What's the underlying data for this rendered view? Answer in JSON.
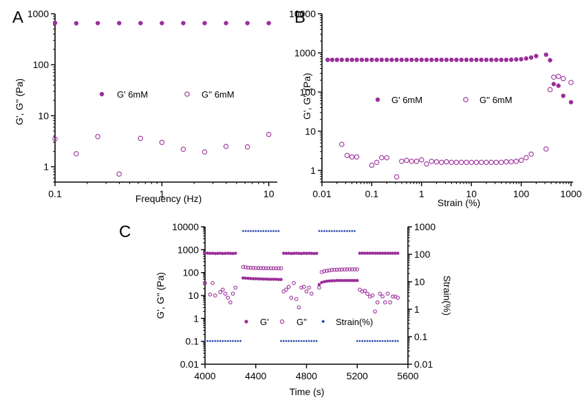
{
  "colors": {
    "purple": "#9b2f9b",
    "blue": "#1f3fa8"
  },
  "chart_data": [
    {
      "type": "scatter",
      "panel_label": "A",
      "xlabel": "Frequency (Hz)",
      "ylabel": "G', G'' (Pa)",
      "x_scale": "log",
      "y_scale": "log",
      "xlim": [
        0.1,
        12
      ],
      "ylim": [
        0.5,
        1000
      ],
      "x_ticks": [
        "0.1",
        "1",
        "10"
      ],
      "y_ticks": [
        "1",
        "10",
        "100",
        "1000"
      ],
      "legend": "center",
      "series": [
        {
          "name": "G' 6mM",
          "marker": "filled",
          "x": [
            0.1,
            0.158,
            0.251,
            0.398,
            0.631,
            1.0,
            1.585,
            2.512,
            3.981,
            6.31,
            10.0
          ],
          "y": [
            660,
            650,
            655,
            655,
            655,
            655,
            655,
            655,
            655,
            655,
            655
          ]
        },
        {
          "name": "G'' 6mM",
          "marker": "open",
          "x": [
            0.1,
            0.158,
            0.251,
            0.398,
            0.631,
            1.0,
            1.585,
            2.512,
            3.981,
            6.31,
            10.0
          ],
          "y": [
            3.5,
            1.8,
            3.9,
            0.72,
            3.6,
            3.0,
            2.2,
            1.95,
            2.5,
            2.45,
            4.3
          ]
        }
      ]
    },
    {
      "type": "scatter",
      "panel_label": "B",
      "xlabel": "Strain (%)",
      "ylabel": "G', G'' (Pa)",
      "x_scale": "log",
      "y_scale": "log",
      "xlim": [
        0.01,
        1100
      ],
      "ylim": [
        0.5,
        10000
      ],
      "x_ticks": [
        "0.01",
        "0.1",
        "1",
        "10",
        "100",
        "1000"
      ],
      "y_ticks": [
        "1",
        "10",
        "100",
        "1000",
        "10000"
      ],
      "legend": "center",
      "series": [
        {
          "name": "G' 6mM",
          "marker": "filled",
          "x": [
            0.013,
            0.016,
            0.02,
            0.025,
            0.032,
            0.04,
            0.05,
            0.063,
            0.079,
            0.1,
            0.126,
            0.158,
            0.2,
            0.251,
            0.316,
            0.398,
            0.501,
            0.631,
            0.794,
            1.0,
            1.259,
            1.585,
            1.995,
            2.512,
            3.162,
            3.981,
            5.012,
            6.31,
            7.943,
            10.0,
            12.59,
            15.85,
            19.95,
            25.12,
            31.62,
            39.81,
            50.12,
            63.1,
            79.43,
            100,
            125.9,
            158.5,
            199.5,
            316,
            380,
            450,
            560,
            700,
            1000
          ],
          "y": [
            665,
            665,
            665,
            665,
            665,
            665,
            665,
            665,
            665,
            665,
            665,
            665,
            665,
            665,
            665,
            665,
            665,
            665,
            665,
            665,
            665,
            665,
            665,
            665,
            665,
            665,
            665,
            665,
            665,
            665,
            665,
            665,
            665,
            665,
            665,
            665,
            665,
            670,
            680,
            690,
            720,
            760,
            830,
            900,
            650,
            160,
            145,
            80,
            55
          ]
        },
        {
          "name": "G'' 6mM",
          "marker": "open",
          "x": [
            0.025,
            0.032,
            0.04,
            0.05,
            0.1,
            0.126,
            0.158,
            0.2,
            0.316,
            0.398,
            0.501,
            0.631,
            0.794,
            1.0,
            1.259,
            1.585,
            1.995,
            2.512,
            3.162,
            3.981,
            5.012,
            6.31,
            7.943,
            10.0,
            12.59,
            15.85,
            19.95,
            25.12,
            31.62,
            39.81,
            50.12,
            63.1,
            79.43,
            100,
            125.9,
            158.5,
            316,
            380,
            450,
            560,
            700,
            1000
          ],
          "y": [
            4.6,
            2.4,
            2.2,
            2.2,
            1.35,
            1.6,
            2.1,
            2.1,
            0.68,
            1.7,
            1.8,
            1.7,
            1.7,
            1.85,
            1.45,
            1.7,
            1.65,
            1.6,
            1.65,
            1.6,
            1.6,
            1.6,
            1.6,
            1.6,
            1.6,
            1.6,
            1.6,
            1.6,
            1.6,
            1.6,
            1.65,
            1.65,
            1.7,
            1.8,
            2.1,
            2.6,
            3.5,
            115,
            240,
            250,
            220,
            175
          ]
        }
      ]
    },
    {
      "type": "scatter",
      "panel_label": "C",
      "xlabel": "Time (s)",
      "ylabel": "G', G'' (Pa)",
      "ylabel_right": "Strain(%)",
      "y_scale": "log",
      "y2_scale": "log",
      "xlim": [
        4000,
        5600
      ],
      "ylim": [
        0.01,
        10000
      ],
      "y2lim": [
        0.01,
        1000
      ],
      "x_ticks": [
        "4000",
        "4400",
        "4800",
        "5200",
        "5600"
      ],
      "y_ticks": [
        "0.01",
        "0.1",
        "1",
        "10",
        "100",
        "1000",
        "10000"
      ],
      "y2_ticks": [
        "0.01",
        "0.1",
        "1",
        "10",
        "100",
        "1000"
      ],
      "legend": "lower-center",
      "series": [
        {
          "name": "G'",
          "marker": "filled",
          "x": [
            4000,
            4020,
            4040,
            4060,
            4080,
            4100,
            4120,
            4140,
            4160,
            4180,
            4200,
            4220,
            4240,
            4300,
            4320,
            4340,
            4360,
            4380,
            4400,
            4420,
            4440,
            4460,
            4480,
            4500,
            4520,
            4540,
            4560,
            4580,
            4600,
            4620,
            4640,
            4660,
            4680,
            4700,
            4720,
            4740,
            4760,
            4780,
            4800,
            4820,
            4840,
            4860,
            4880,
            4900,
            4920,
            4940,
            4960,
            4980,
            5000,
            5020,
            5040,
            5060,
            5080,
            5100,
            5120,
            5140,
            5160,
            5180,
            5200,
            5220,
            5240,
            5260,
            5280,
            5300,
            5320,
            5340,
            5360,
            5380,
            5400,
            5420,
            5440,
            5460,
            5480,
            5500,
            5520
          ],
          "y": [
            700,
            710,
            690,
            700,
            680,
            690,
            700,
            680,
            690,
            700,
            690,
            680,
            700,
            58,
            57,
            56,
            55,
            54,
            54,
            53,
            53,
            52,
            52,
            51,
            51,
            51,
            51,
            50,
            50,
            700,
            690,
            700,
            680,
            690,
            700,
            690,
            680,
            700,
            690,
            700,
            690,
            680,
            690,
            30,
            37,
            40,
            42,
            43,
            44,
            44,
            45,
            45,
            45,
            45,
            45,
            45,
            45,
            45,
            45,
            700,
            705,
            700,
            700,
            700,
            705,
            700,
            700,
            700,
            700,
            700,
            700,
            700,
            700,
            700,
            700
          ]
        },
        {
          "name": "G''",
          "marker": "open",
          "x": [
            4000,
            4040,
            4060,
            4080,
            4120,
            4140,
            4160,
            4180,
            4200,
            4220,
            4240,
            4300,
            4320,
            4340,
            4360,
            4380,
            4400,
            4420,
            4440,
            4460,
            4480,
            4500,
            4520,
            4540,
            4560,
            4580,
            4600,
            4620,
            4640,
            4660,
            4680,
            4700,
            4720,
            4740,
            4760,
            4780,
            4800,
            4820,
            4840,
            4900,
            4920,
            4940,
            4960,
            4980,
            5000,
            5020,
            5040,
            5060,
            5080,
            5100,
            5120,
            5140,
            5160,
            5180,
            5200,
            5220,
            5240,
            5260,
            5280,
            5300,
            5320,
            5340,
            5360,
            5380,
            5400,
            5420,
            5440,
            5460,
            5480,
            5500,
            5520
          ],
          "y": [
            35,
            11,
            35,
            10,
            14,
            18,
            12,
            8,
            5,
            12,
            22,
            175,
            170,
            165,
            162,
            160,
            158,
            157,
            156,
            155,
            155,
            154,
            154,
            154,
            153,
            153,
            153,
            15,
            18,
            24,
            8,
            35,
            7,
            3,
            22,
            24,
            15,
            22,
            12,
            22,
            105,
            115,
            120,
            125,
            130,
            132,
            134,
            135,
            136,
            137,
            138,
            138,
            138,
            138,
            138,
            18,
            15,
            16,
            12,
            9,
            10,
            2,
            5,
            12,
            9,
            5,
            12,
            5,
            9,
            9,
            8
          ]
        },
        {
          "name": "Strain(%)",
          "marker": "diamond",
          "axis": "right",
          "x": [
            4000,
            4020,
            4040,
            4060,
            4080,
            4100,
            4120,
            4140,
            4160,
            4180,
            4200,
            4220,
            4240,
            4260,
            4280,
            4300,
            4320,
            4340,
            4360,
            4380,
            4400,
            4420,
            4440,
            4460,
            4480,
            4500,
            4520,
            4540,
            4560,
            4580,
            4600,
            4620,
            4640,
            4660,
            4680,
            4700,
            4720,
            4740,
            4760,
            4780,
            4800,
            4820,
            4840,
            4860,
            4880,
            4900,
            4920,
            4940,
            4960,
            4980,
            5000,
            5020,
            5040,
            5060,
            5080,
            5100,
            5120,
            5140,
            5160,
            5180,
            5200,
            5220,
            5240,
            5260,
            5280,
            5300,
            5320,
            5340,
            5360,
            5380,
            5400,
            5420,
            5440,
            5460,
            5480,
            5500,
            5520
          ],
          "y": [
            0.07,
            0.07,
            0.07,
            0.07,
            0.07,
            0.07,
            0.07,
            0.07,
            0.07,
            0.07,
            0.07,
            0.07,
            0.07,
            0.07,
            0.07,
            700,
            700,
            700,
            700,
            700,
            700,
            700,
            700,
            700,
            700,
            700,
            700,
            700,
            700,
            700,
            0.07,
            0.07,
            0.07,
            0.07,
            0.07,
            0.07,
            0.07,
            0.07,
            0.07,
            0.07,
            0.07,
            0.07,
            0.07,
            0.07,
            0.07,
            700,
            700,
            700,
            700,
            700,
            700,
            700,
            700,
            700,
            700,
            700,
            700,
            700,
            700,
            700,
            0.07,
            0.07,
            0.07,
            0.07,
            0.07,
            0.07,
            0.07,
            0.07,
            0.07,
            0.07,
            0.07,
            0.07,
            0.07,
            0.07,
            0.07,
            0.07,
            0.07
          ]
        }
      ]
    }
  ]
}
